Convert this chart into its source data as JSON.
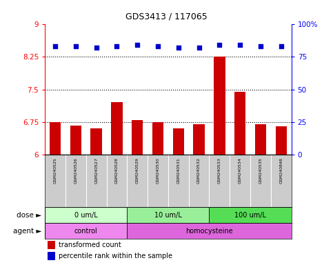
{
  "title": "GDS3413 / 117065",
  "samples": [
    "GSM240525",
    "GSM240526",
    "GSM240527",
    "GSM240528",
    "GSM240529",
    "GSM240530",
    "GSM240531",
    "GSM240532",
    "GSM240533",
    "GSM240534",
    "GSM240535",
    "GSM240848"
  ],
  "bar_values": [
    6.75,
    6.67,
    6.61,
    7.2,
    6.8,
    6.75,
    6.6,
    6.7,
    8.25,
    7.45,
    6.7,
    6.65
  ],
  "percentile_values": [
    83,
    83,
    82,
    83,
    84,
    83,
    82,
    82,
    84,
    84,
    83,
    83
  ],
  "bar_color": "#cc0000",
  "dot_color": "#0000cc",
  "ylim_left": [
    6,
    9
  ],
  "ylim_right": [
    0,
    100
  ],
  "yticks_left": [
    6,
    6.75,
    7.5,
    8.25,
    9
  ],
  "yticks_right": [
    0,
    25,
    50,
    75,
    100
  ],
  "ytick_labels_left": [
    "6",
    "6.75",
    "7.5",
    "8.25",
    "9"
  ],
  "ytick_labels_right": [
    "0",
    "25",
    "50",
    "75",
    "100%"
  ],
  "hlines": [
    6.75,
    7.5,
    8.25
  ],
  "dose_groups": [
    {
      "label": "0 um/L",
      "start": 0,
      "end": 4,
      "color": "#ccffcc"
    },
    {
      "label": "10 um/L",
      "start": 4,
      "end": 8,
      "color": "#99ee99"
    },
    {
      "label": "100 um/L",
      "start": 8,
      "end": 12,
      "color": "#55dd55"
    }
  ],
  "agent_groups": [
    {
      "label": "control",
      "start": 0,
      "end": 4,
      "color": "#ee88ee"
    },
    {
      "label": "homocysteine",
      "start": 4,
      "end": 12,
      "color": "#dd66dd"
    }
  ],
  "dose_label": "dose",
  "agent_label": "agent",
  "legend_bar": "transformed count",
  "legend_dot": "percentile rank within the sample",
  "sample_bg_color": "#cccccc",
  "bar_color_red": "#cc0000",
  "dot_color_blue": "#0000cc"
}
